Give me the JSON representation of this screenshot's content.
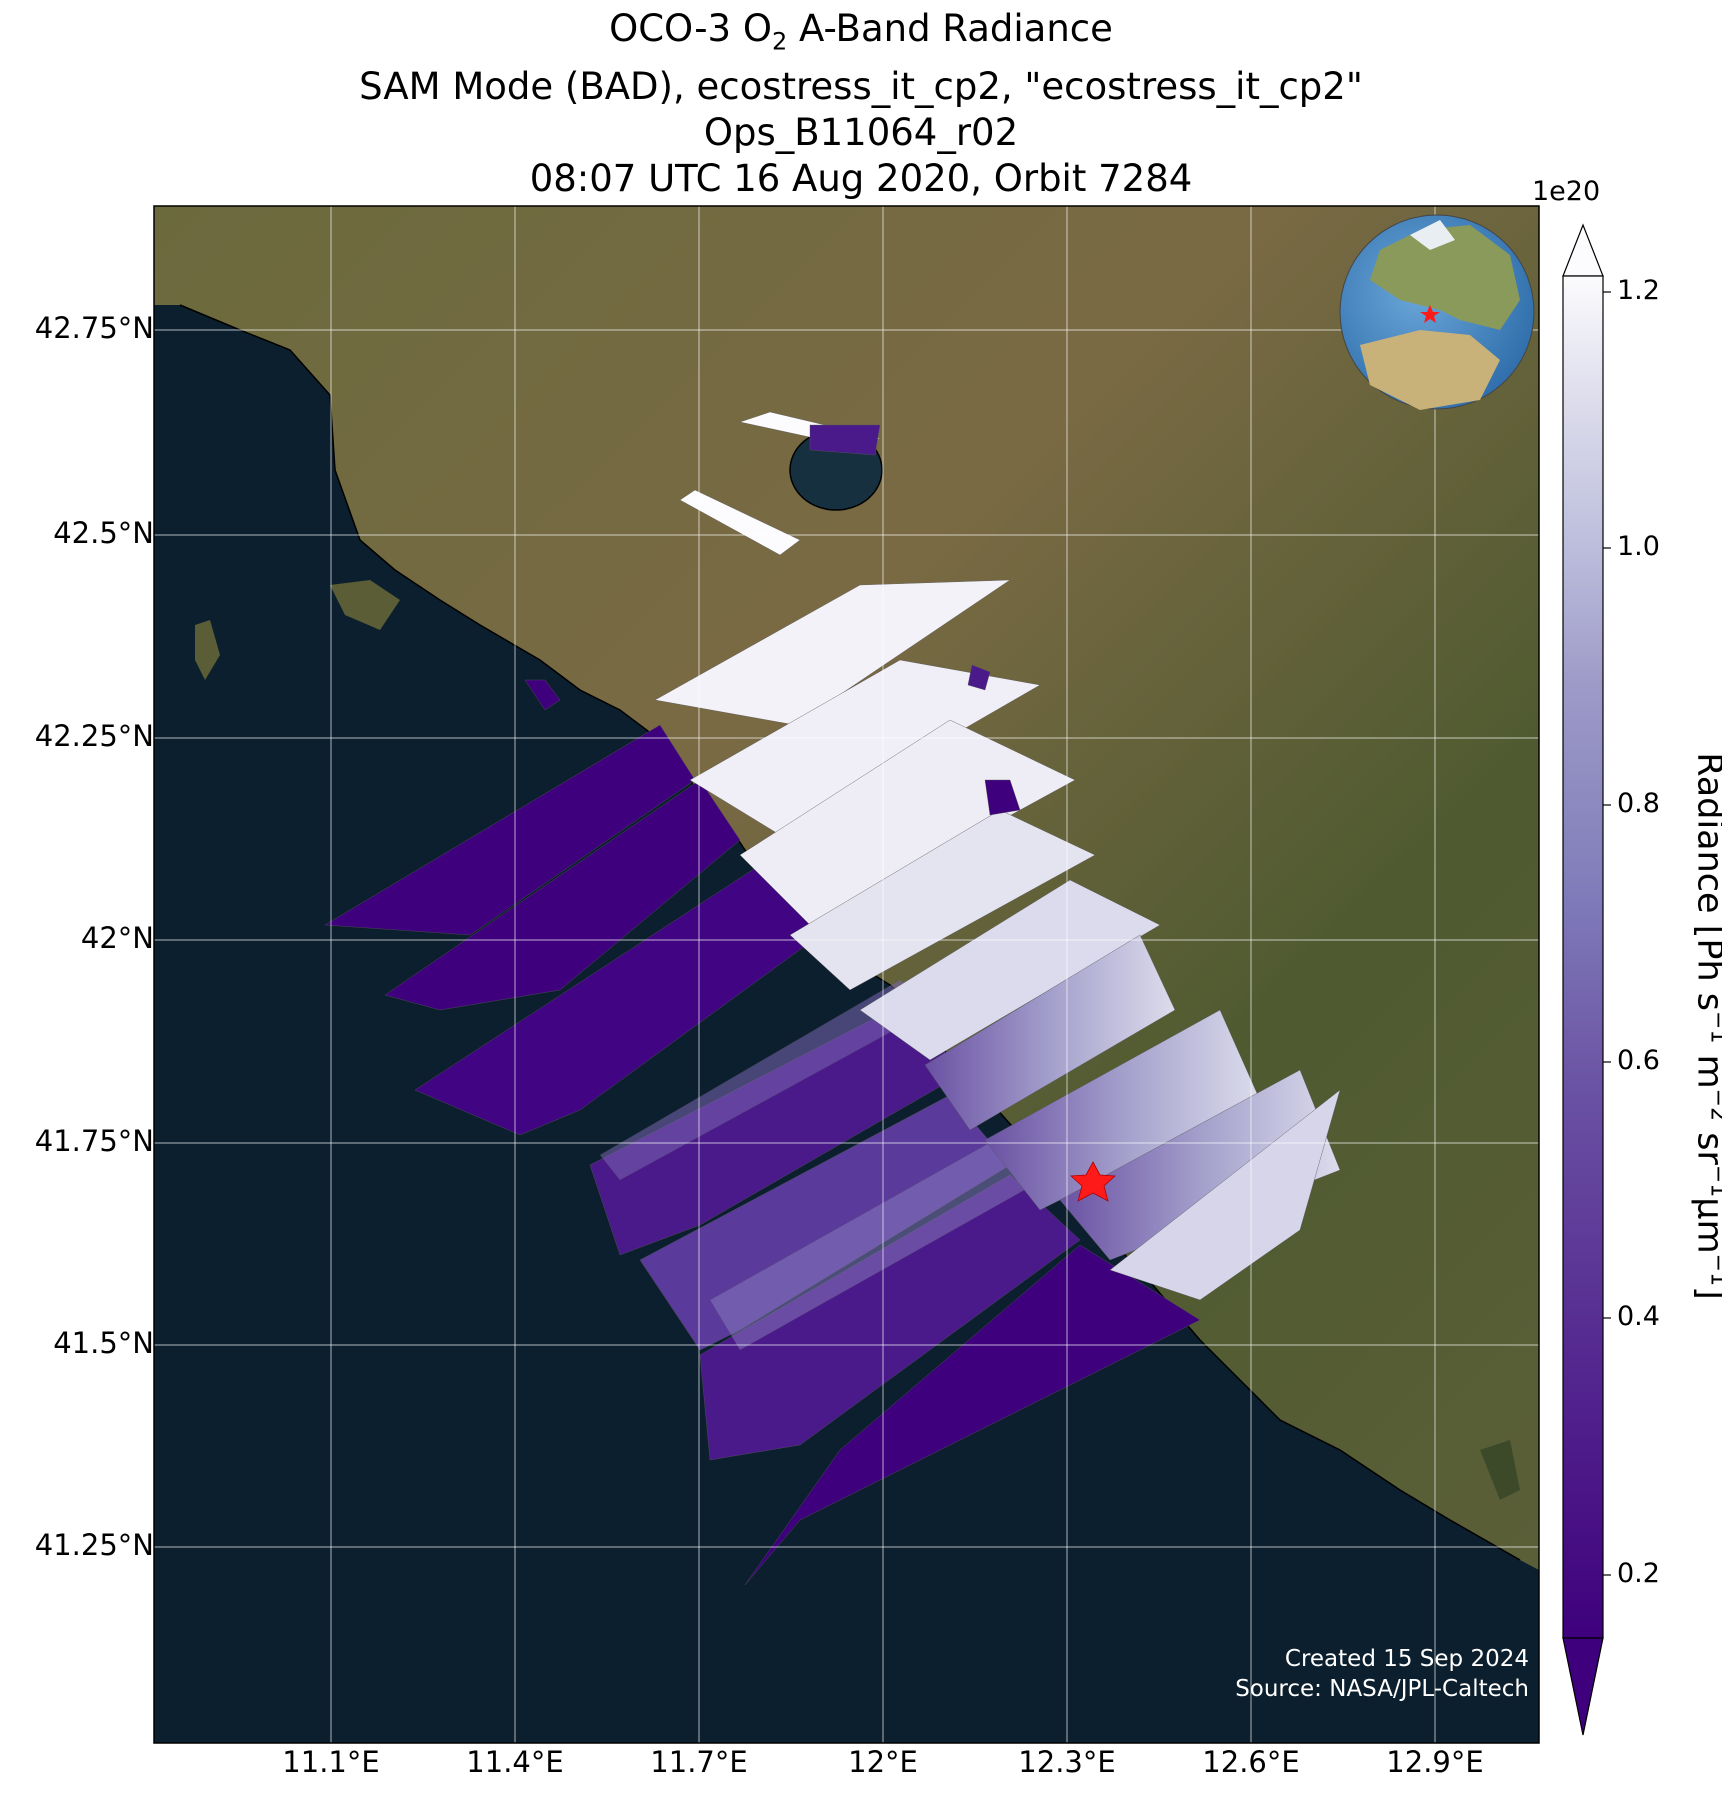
{
  "title": {
    "line1_pre": "OCO-3 O",
    "line1_sub": "2",
    "line1_post": " A-Band Radiance",
    "line2": "SAM Mode (BAD), ecostress_it_cp2, \"ecostress_it_cp2\"",
    "line3": "Ops_B11064_r02",
    "line4": "08:07 UTC 16 Aug 2020, Orbit 7284"
  },
  "axes": {
    "lat_ticks": [
      "42.75°N",
      "42.5°N",
      "42.25°N",
      "42°N",
      "41.75°N",
      "41.5°N",
      "41.25°N"
    ],
    "lon_ticks": [
      "11.1°E",
      "11.4°E",
      "11.7°E",
      "12°E",
      "12.3°E",
      "12.6°E",
      "12.9°E"
    ]
  },
  "colorbar": {
    "exponent": "1e20",
    "ticks": [
      "1.2",
      "1.0",
      "0.8",
      "0.6",
      "0.4",
      "0.2"
    ],
    "label_text": "Radiance [Ph s",
    "label_unit_parts": [
      "−1",
      " m",
      "−2",
      " sr",
      "−1",
      "μm",
      "−1",
      "]"
    ],
    "colors": {
      "low": "#3f007d",
      "mid": "#807dba",
      "high": "#fcfbfd"
    }
  },
  "credit": {
    "line1": "Created 15 Sep 2024",
    "line2": "Source: NASA/JPL-Caltech"
  },
  "map": {
    "colors": {
      "sea": "#0c1f2e",
      "land": "#5d5a34",
      "target_star": "#ff1a1a"
    }
  },
  "inset_globe": {
    "marker": "red-star-italy"
  }
}
